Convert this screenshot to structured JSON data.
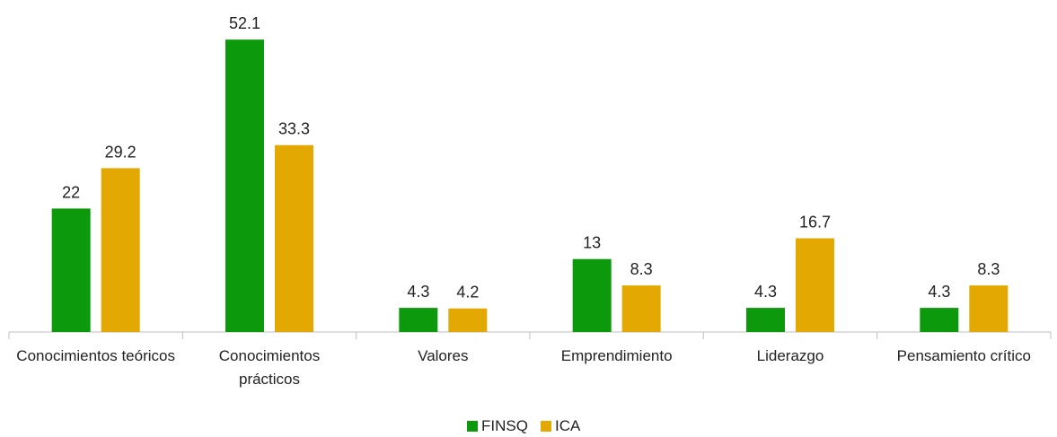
{
  "chart_data": {
    "type": "bar",
    "categories": [
      "Conocimientos teóricos",
      "Conocimientos prácticos",
      "Valores",
      "Emprendimiento",
      "Liderazgo",
      "Pensamiento crítico"
    ],
    "series": [
      {
        "name": "FINSQ",
        "color": "#0c9a0c",
        "values": [
          22,
          52.1,
          4.3,
          13,
          4.3,
          4.3
        ]
      },
      {
        "name": "ICA",
        "color": "#e3a802",
        "values": [
          29.2,
          33.3,
          4.2,
          8.3,
          16.7,
          8.3
        ]
      }
    ],
    "ylim": [
      0,
      55
    ],
    "legend": "bottom"
  }
}
